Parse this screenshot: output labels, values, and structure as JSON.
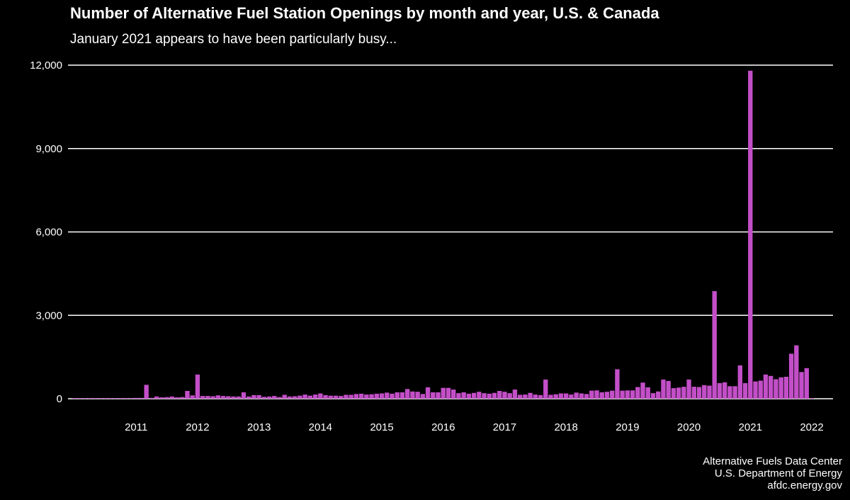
{
  "header": {
    "title": "Number of Alternative Fuel Station Openings by month and year, U.S. & Canada",
    "subtitle": "January 2021 appears to have been particularly busy..."
  },
  "caption": {
    "line1": "Alternative Fuels Data Center",
    "line2": "U.S. Department of Energy",
    "line3": "afdc.energy.gov"
  },
  "colors": {
    "background": "#000000",
    "bar": "#c34fc8",
    "grid": "#ffffff",
    "text": "#ffffff"
  },
  "chart_data": {
    "type": "bar",
    "title": "Number of Alternative Fuel Station Openings by month and year, U.S. & Canada",
    "subtitle": "January 2021 appears to have been particularly busy...",
    "xlabel": "",
    "ylabel": "",
    "ylim": [
      0,
      12000
    ],
    "y_ticks": [
      "0",
      "3,000",
      "6,000",
      "9,000",
      "12,000"
    ],
    "y_tick_values": [
      0,
      3000,
      6000,
      9000,
      12000
    ],
    "x_ticks": [
      "2011",
      "2012",
      "2013",
      "2014",
      "2015",
      "2016",
      "2017",
      "2018",
      "2019",
      "2020",
      "2021",
      "2022"
    ],
    "grid": "horizontal",
    "start_month": "2010-01",
    "series": [
      {
        "values": [
          20,
          20,
          20,
          20,
          20,
          20,
          20,
          20,
          20,
          20,
          20,
          20,
          30,
          30,
          500,
          30,
          80,
          50,
          60,
          80,
          50,
          60,
          280,
          120,
          870,
          100,
          100,
          90,
          120,
          100,
          90,
          80,
          80,
          230,
          80,
          130,
          130,
          70,
          80,
          100,
          60,
          140,
          80,
          90,
          110,
          150,
          110,
          150,
          190,
          130,
          110,
          110,
          100,
          140,
          140,
          170,
          180,
          150,
          160,
          180,
          190,
          220,
          180,
          230,
          230,
          350,
          260,
          250,
          170,
          410,
          230,
          230,
          390,
          390,
          330,
          200,
          230,
          180,
          210,
          250,
          200,
          180,
          210,
          280,
          250,
          200,
          330,
          140,
          150,
          210,
          150,
          130,
          690,
          140,
          160,
          190,
          190,
          150,
          220,
          190,
          170,
          290,
          300,
          230,
          250,
          290,
          1060,
          290,
          300,
          300,
          420,
          580,
          410,
          200,
          260,
          690,
          640,
          380,
          400,
          430,
          690,
          430,
          420,
          490,
          470,
          3870,
          560,
          590,
          450,
          450,
          1200,
          560,
          11800,
          620,
          650,
          870,
          820,
          700,
          770,
          790,
          1620,
          1920,
          960,
          1100,
          20
        ]
      }
    ]
  }
}
